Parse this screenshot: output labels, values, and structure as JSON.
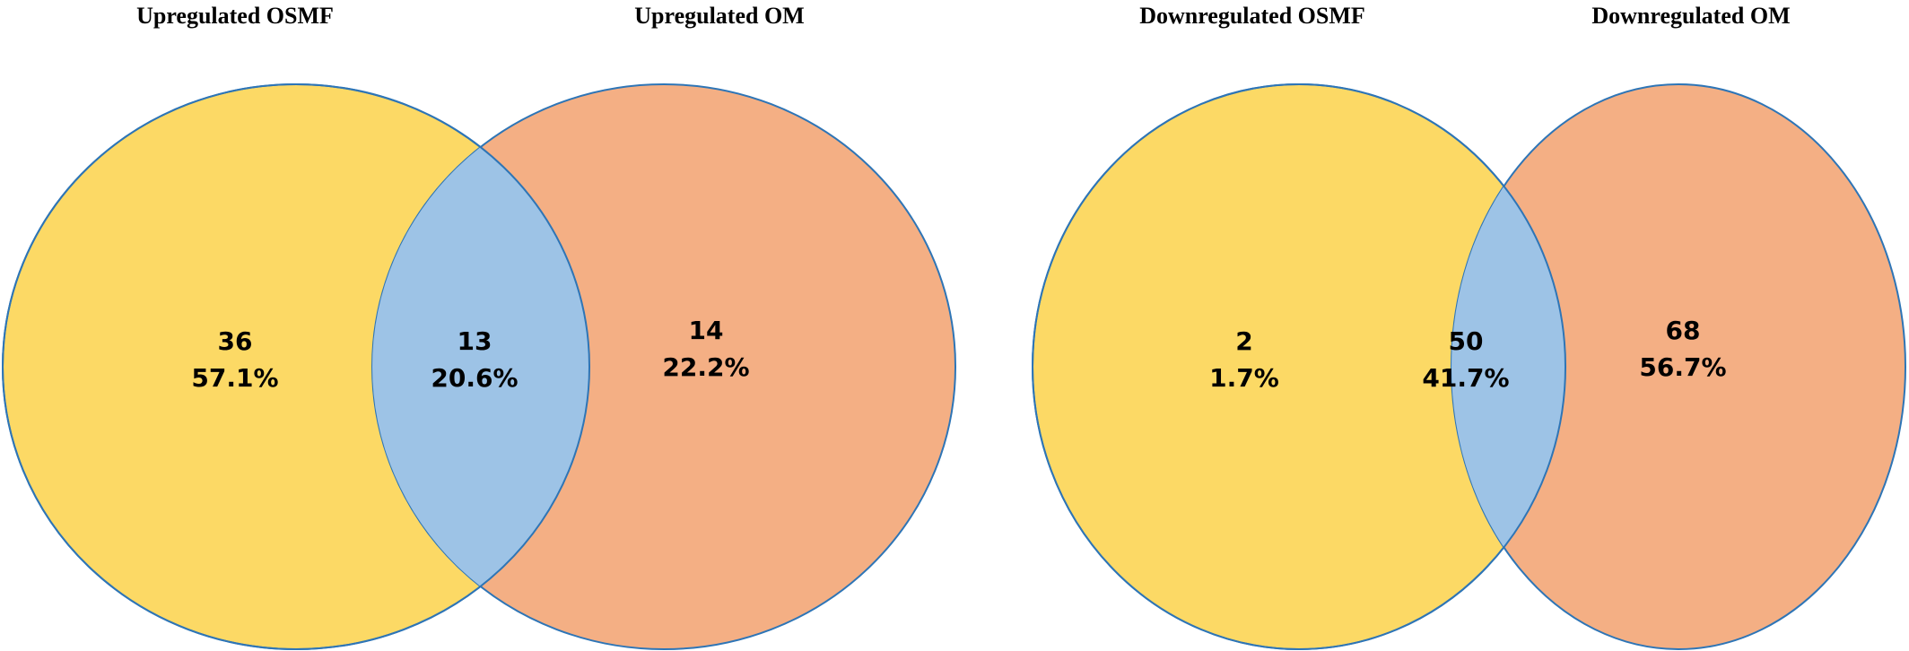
{
  "colors": {
    "left_set": "#FCD965",
    "right_set": "#F4AF84",
    "overlap": "#9DC3E6",
    "outline": "#2E75B6"
  },
  "diagrams": [
    {
      "left_label": "Upregulated OSMF",
      "right_label": "Upregulated OM",
      "left_only": {
        "count": "36",
        "percent": "57.1%"
      },
      "overlap": {
        "count": "13",
        "percent": "20.6%"
      },
      "right_only": {
        "count": "14",
        "percent": "22.2%"
      }
    },
    {
      "left_label": "Downregulated OSMF",
      "right_label": "Downregulated OM",
      "left_only": {
        "count": "2",
        "percent": "1.7%"
      },
      "overlap": {
        "count": "50",
        "percent": "41.7%"
      },
      "right_only": {
        "count": "68",
        "percent": "56.7%"
      }
    }
  ]
}
